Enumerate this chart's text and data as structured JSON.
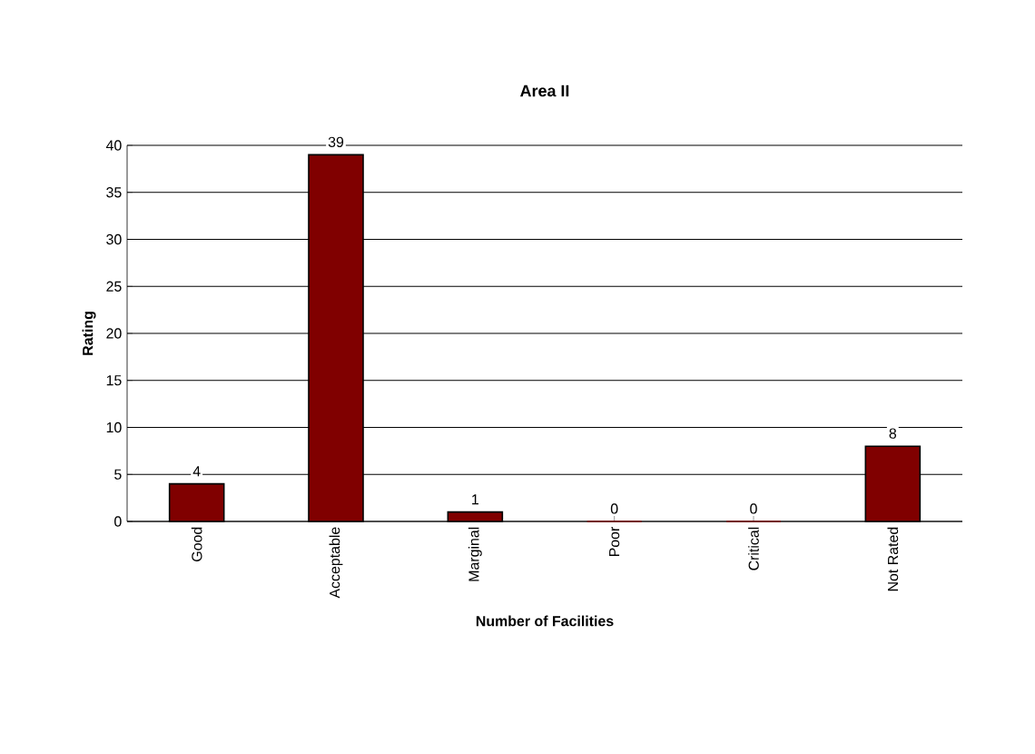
{
  "chart_data": {
    "type": "bar",
    "title": "Area II",
    "xlabel": "Number of Facilities",
    "ylabel": "Rating",
    "categories": [
      "Good",
      "Acceptable",
      "Marginal",
      "Poor",
      "Critical",
      "Not Rated"
    ],
    "values": [
      4,
      39,
      1,
      0,
      0,
      8
    ],
    "color": "#800000",
    "ylim": [
      0,
      40
    ],
    "yticks": [
      0,
      5,
      10,
      15,
      20,
      25,
      30,
      35,
      40
    ],
    "grid": "y",
    "data_labels": true
  }
}
